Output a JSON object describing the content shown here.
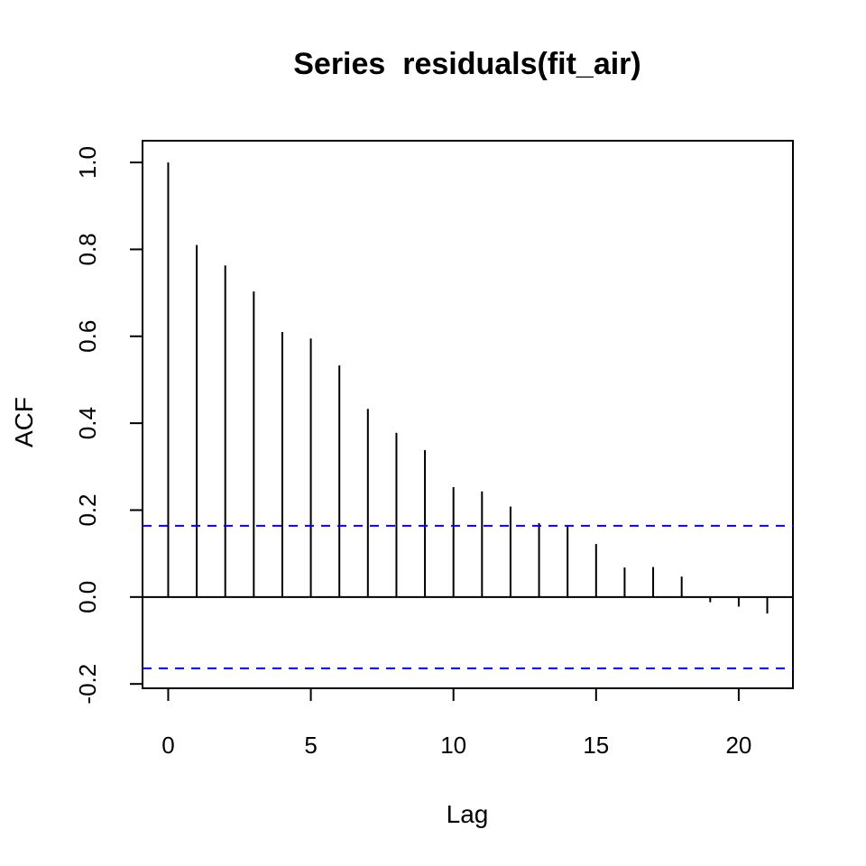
{
  "chart_data": {
    "type": "bar",
    "subtype": "acf-spikes",
    "title": "Series  residuals(fit_air)",
    "xlabel": "Lag",
    "ylabel": "ACF",
    "xlim": [
      -0.9,
      21.9
    ],
    "ylim": [
      -0.21,
      1.05
    ],
    "x_ticks": [
      0,
      5,
      10,
      15,
      20
    ],
    "x_tick_labels": [
      "0",
      "5",
      "10",
      "15",
      "20"
    ],
    "y_ticks": [
      -0.2,
      0.0,
      0.2,
      0.4,
      0.6,
      0.8,
      1.0
    ],
    "y_tick_labels": [
      "-0.2",
      "0.0",
      "0.2",
      "0.4",
      "0.6",
      "0.8",
      "1.0"
    ],
    "lags": [
      0,
      1,
      2,
      3,
      4,
      5,
      6,
      7,
      8,
      9,
      10,
      11,
      12,
      13,
      14,
      15,
      16,
      17,
      18,
      19,
      20,
      21
    ],
    "values": [
      1.0,
      0.81,
      0.763,
      0.703,
      0.61,
      0.595,
      0.533,
      0.433,
      0.378,
      0.338,
      0.253,
      0.243,
      0.208,
      0.17,
      0.163,
      0.122,
      0.068,
      0.069,
      0.047,
      -0.012,
      -0.022,
      -0.038
    ],
    "confidence_bound": 0.164,
    "zero_line": true,
    "grid": false,
    "legend": "none",
    "colors": {
      "spike": "#000000",
      "confidence": "#0000ff",
      "axis": "#000000"
    }
  }
}
